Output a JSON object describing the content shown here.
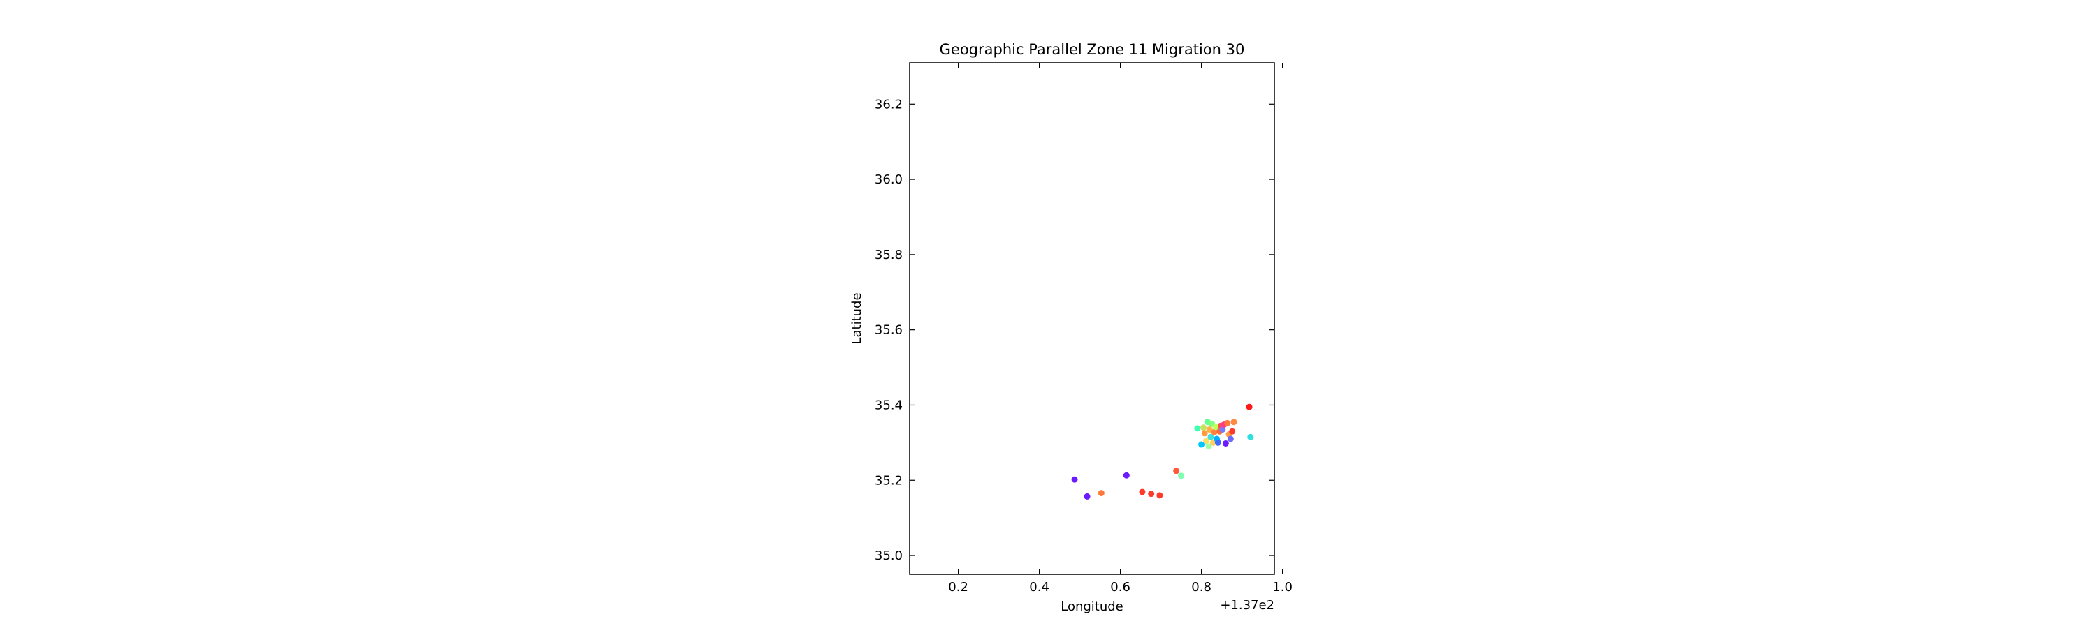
{
  "chart_data": {
    "type": "scatter",
    "title": "Geographic Parallel Zone 11 Migration 30",
    "xlabel": "Longitude",
    "ylabel": "Latitude",
    "x_offset_label": "+1.37e2",
    "xlim": [
      0.08,
      0.98
    ],
    "ylim": [
      34.95,
      36.31
    ],
    "grid": false,
    "xticks": [
      {
        "value": 0.2,
        "label": "0.2"
      },
      {
        "value": 0.4,
        "label": "0.4"
      },
      {
        "value": 0.6,
        "label": "0.6"
      },
      {
        "value": 0.8,
        "label": "0.8"
      },
      {
        "value": 1.0,
        "label": "1.0"
      }
    ],
    "yticks": [
      {
        "value": 35.0,
        "label": "35.0"
      },
      {
        "value": 35.2,
        "label": "35.2"
      },
      {
        "value": 35.4,
        "label": "35.4"
      },
      {
        "value": 35.6,
        "label": "35.6"
      },
      {
        "value": 35.8,
        "label": "35.8"
      },
      {
        "value": 36.0,
        "label": "36.0"
      },
      {
        "value": 36.2,
        "label": "36.2"
      }
    ],
    "points": [
      {
        "x": 0.487,
        "y": 35.202,
        "color": "#6a1bff"
      },
      {
        "x": 0.518,
        "y": 35.157,
        "color": "#6a1bff"
      },
      {
        "x": 0.553,
        "y": 35.166,
        "color": "#ff7a3a"
      },
      {
        "x": 0.615,
        "y": 35.213,
        "color": "#6a1bff"
      },
      {
        "x": 0.654,
        "y": 35.169,
        "color": "#ff3a2a"
      },
      {
        "x": 0.676,
        "y": 35.164,
        "color": "#ff3a2a"
      },
      {
        "x": 0.697,
        "y": 35.16,
        "color": "#ff3a2a"
      },
      {
        "x": 0.738,
        "y": 35.225,
        "color": "#ff5a3a"
      },
      {
        "x": 0.75,
        "y": 35.212,
        "color": "#7fffb0"
      },
      {
        "x": 0.79,
        "y": 35.338,
        "color": "#40ffb0"
      },
      {
        "x": 0.8,
        "y": 35.295,
        "color": "#00c8ff"
      },
      {
        "x": 0.805,
        "y": 35.34,
        "color": "#c8e060"
      },
      {
        "x": 0.808,
        "y": 35.325,
        "color": "#ff9a40"
      },
      {
        "x": 0.812,
        "y": 35.305,
        "color": "#ffe060"
      },
      {
        "x": 0.815,
        "y": 35.355,
        "color": "#60ff90"
      },
      {
        "x": 0.818,
        "y": 35.29,
        "color": "#a0ffa0"
      },
      {
        "x": 0.82,
        "y": 35.335,
        "color": "#ffb040"
      },
      {
        "x": 0.823,
        "y": 35.315,
        "color": "#40e0e0"
      },
      {
        "x": 0.826,
        "y": 35.35,
        "color": "#80ff80"
      },
      {
        "x": 0.829,
        "y": 35.3,
        "color": "#ffd060"
      },
      {
        "x": 0.832,
        "y": 35.328,
        "color": "#ff8040"
      },
      {
        "x": 0.835,
        "y": 35.342,
        "color": "#c0ff60"
      },
      {
        "x": 0.838,
        "y": 35.31,
        "color": "#00b0ff"
      },
      {
        "x": 0.841,
        "y": 35.3,
        "color": "#3a6aff"
      },
      {
        "x": 0.845,
        "y": 35.33,
        "color": "#ff6a30"
      },
      {
        "x": 0.848,
        "y": 35.345,
        "color": "#ff4a4a"
      },
      {
        "x": 0.852,
        "y": 35.335,
        "color": "#7a7aff"
      },
      {
        "x": 0.856,
        "y": 35.348,
        "color": "#ff3a8a"
      },
      {
        "x": 0.86,
        "y": 35.298,
        "color": "#6a1bff"
      },
      {
        "x": 0.864,
        "y": 35.352,
        "color": "#ff7a3a"
      },
      {
        "x": 0.868,
        "y": 35.322,
        "color": "#ffa040"
      },
      {
        "x": 0.872,
        "y": 35.31,
        "color": "#6a6aff"
      },
      {
        "x": 0.876,
        "y": 35.33,
        "color": "#ff3a2a"
      },
      {
        "x": 0.88,
        "y": 35.355,
        "color": "#ff8a40"
      },
      {
        "x": 0.918,
        "y": 35.395,
        "color": "#ff1a1a"
      },
      {
        "x": 0.921,
        "y": 35.315,
        "color": "#30e0e0"
      }
    ]
  }
}
